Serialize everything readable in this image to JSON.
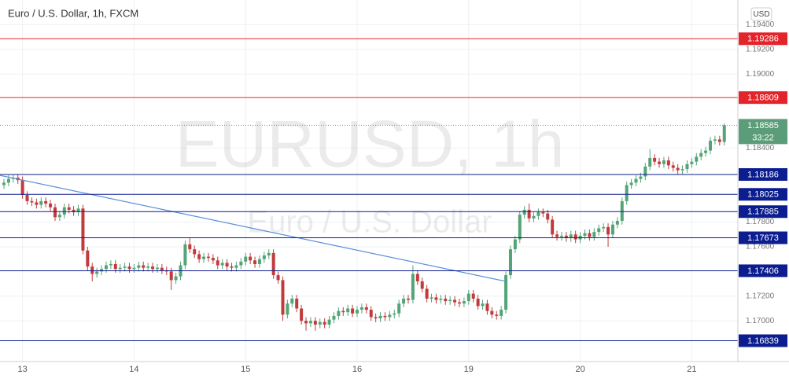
{
  "chart_data": {
    "type": "candlestick",
    "title": "Euro / U.S. Dollar, 1h, FXCM",
    "watermark": "EURUSD, 1h",
    "watermark_subtitle": "Euro / U.S. Dollar",
    "currency": "USD",
    "up_color": "#53a477",
    "down_color": "#c23b3b",
    "grid": true,
    "ylim": [
      1.1667,
      1.196
    ],
    "yticks": [
      {
        "value": 1.194,
        "label": "1.19400"
      },
      {
        "value": 1.192,
        "label": "1.19200"
      },
      {
        "value": 1.19,
        "label": "1.19000"
      },
      {
        "value": 1.184,
        "label": "1.18400"
      },
      {
        "value": 1.178,
        "label": "1.17800"
      },
      {
        "value": 1.176,
        "label": "1.17600"
      },
      {
        "value": 1.172,
        "label": "1.17200"
      },
      {
        "value": 1.17,
        "label": "1.17000"
      }
    ],
    "categories": [
      null,
      null,
      null,
      null,
      "13",
      null,
      null,
      null,
      null,
      null,
      null,
      null,
      null,
      null,
      null,
      null,
      null,
      null,
      null,
      null,
      null,
      null,
      null,
      null,
      null,
      null,
      null,
      null,
      "14",
      null,
      null,
      null,
      null,
      null,
      null,
      null,
      null,
      null,
      null,
      null,
      null,
      null,
      null,
      null,
      null,
      null,
      null,
      null,
      null,
      null,
      null,
      null,
      "15",
      null,
      null,
      null,
      null,
      null,
      null,
      null,
      null,
      null,
      null,
      null,
      null,
      null,
      null,
      null,
      null,
      null,
      null,
      null,
      null,
      null,
      null,
      null,
      "16",
      null,
      null,
      null,
      null,
      null,
      null,
      null,
      null,
      null,
      null,
      null,
      null,
      null,
      null,
      null,
      null,
      null,
      null,
      null,
      null,
      null,
      null,
      null,
      "19",
      null,
      null,
      null,
      null,
      null,
      null,
      null,
      null,
      null,
      null,
      null,
      null,
      null,
      null,
      null,
      null,
      null,
      null,
      null,
      null,
      null,
      null,
      null,
      "20",
      null,
      null,
      null,
      null,
      null,
      null,
      null,
      null,
      null,
      null,
      null,
      null,
      null,
      null,
      null,
      null,
      null,
      null,
      null,
      null,
      null,
      null,
      null,
      "21",
      null,
      null,
      null,
      null,
      null,
      null,
      null
    ],
    "open": [
      1.181,
      1.1812,
      1.1815,
      1.1816,
      1.1814,
      1.1802,
      1.1797,
      1.1796,
      1.1794,
      1.1797,
      1.1795,
      1.1792,
      1.1784,
      1.1786,
      1.1792,
      1.179,
      1.1788,
      1.1791,
      1.1757,
      1.1744,
      1.1738,
      1.174,
      1.1742,
      1.1745,
      1.1746,
      1.1742,
      1.1743,
      1.1744,
      1.1742,
      1.1743,
      1.1745,
      1.1743,
      1.1744,
      1.1742,
      1.1743,
      1.1741,
      1.174,
      1.1733,
      1.1736,
      1.1745,
      1.1762,
      1.1758,
      1.1754,
      1.175,
      1.1752,
      1.1751,
      1.1749,
      1.1745,
      1.1747,
      1.1744,
      1.1743,
      1.1745,
      1.1748,
      1.1752,
      1.1749,
      1.1746,
      1.175,
      1.1753,
      1.1755,
      1.1737,
      1.1733,
      1.1705,
      1.1714,
      1.1718,
      1.171,
      1.17,
      1.1698,
      1.17,
      1.1697,
      1.1699,
      1.1697,
      1.1701,
      1.1704,
      1.1708,
      1.1707,
      1.171,
      1.1706,
      1.1709,
      1.1711,
      1.1709,
      1.1703,
      1.1702,
      1.1704,
      1.1703,
      1.1705,
      1.1706,
      1.1714,
      1.1718,
      1.1717,
      1.1738,
      1.1732,
      1.1726,
      1.1718,
      1.1719,
      1.1717,
      1.1718,
      1.1716,
      1.1717,
      1.1715,
      1.1714,
      1.1716,
      1.1722,
      1.1718,
      1.1712,
      1.1714,
      1.1708,
      1.1705,
      1.1704,
      1.1709,
      1.1737,
      1.1758,
      1.1766,
      1.1786,
      1.179,
      1.1783,
      1.1785,
      1.1788,
      1.1787,
      1.1782,
      1.177,
      1.1768,
      1.1769,
      1.1767,
      1.177,
      1.1766,
      1.1769,
      1.1771,
      1.1768,
      1.1772,
      1.1775,
      1.1776,
      1.177,
      1.1778,
      1.1781,
      1.1797,
      1.181,
      1.1812,
      1.1815,
      1.1817,
      1.1825,
      1.1832,
      1.1829,
      1.1827,
      1.183,
      1.1826,
      1.1824,
      1.1822,
      1.1823,
      1.1827,
      1.1829,
      1.1833,
      1.1836,
      1.1838,
      1.1846,
      1.1847,
      1.1845
    ],
    "high": [
      1.1815,
      1.1818,
      1.1819,
      1.1819,
      1.1817,
      1.1805,
      1.18,
      1.1799,
      1.18,
      1.18,
      1.1798,
      1.1795,
      1.1789,
      1.1795,
      1.1795,
      1.1793,
      1.1794,
      1.1794,
      1.176,
      1.1747,
      1.1743,
      1.1745,
      1.1748,
      1.1749,
      1.1749,
      1.1746,
      1.1747,
      1.1747,
      1.1746,
      1.1748,
      1.1748,
      1.1747,
      1.1747,
      1.1746,
      1.1746,
      1.1744,
      1.1743,
      1.1739,
      1.1748,
      1.1765,
      1.1767,
      1.1761,
      1.1757,
      1.1755,
      1.1755,
      1.1754,
      1.1752,
      1.175,
      1.175,
      1.1747,
      1.1748,
      1.1751,
      1.1755,
      1.1755,
      1.1752,
      1.1753,
      1.1756,
      1.1758,
      1.1758,
      1.174,
      1.1736,
      1.1717,
      1.1721,
      1.1721,
      1.1713,
      1.1703,
      1.1703,
      1.1703,
      1.1702,
      1.1702,
      1.1704,
      1.1707,
      1.1711,
      1.1711,
      1.1713,
      1.1713,
      1.1712,
      1.1714,
      1.1714,
      1.1712,
      1.1706,
      1.1707,
      1.1707,
      1.1708,
      1.1709,
      1.1717,
      1.1721,
      1.1721,
      1.1745,
      1.1741,
      1.1735,
      1.1729,
      1.1722,
      1.1722,
      1.1721,
      1.1721,
      1.172,
      1.172,
      1.1718,
      1.1719,
      1.1725,
      1.1725,
      1.1721,
      1.1717,
      1.1717,
      1.1711,
      1.1708,
      1.1712,
      1.174,
      1.1761,
      1.1769,
      1.1789,
      1.1793,
      1.1795,
      1.1788,
      1.1791,
      1.1791,
      1.179,
      1.1785,
      1.1773,
      1.1772,
      1.1772,
      1.1773,
      1.1773,
      1.1772,
      1.1774,
      1.1774,
      1.1775,
      1.1778,
      1.1779,
      1.1779,
      1.1781,
      1.1784,
      1.18,
      1.1813,
      1.1815,
      1.1818,
      1.182,
      1.1828,
      1.1839,
      1.1835,
      1.1832,
      1.1833,
      1.1833,
      1.1829,
      1.1827,
      1.1826,
      1.183,
      1.1832,
      1.1836,
      1.1839,
      1.1841,
      1.1849,
      1.185,
      1.185,
      1.186
    ],
    "low": [
      1.1807,
      1.1809,
      1.1812,
      1.1811,
      1.1799,
      1.1794,
      1.1793,
      1.1791,
      1.1791,
      1.1792,
      1.1789,
      1.1781,
      1.1781,
      1.1783,
      1.1787,
      1.1785,
      1.1785,
      1.1754,
      1.1741,
      1.1732,
      1.1735,
      1.1737,
      1.1739,
      1.1742,
      1.1739,
      1.1739,
      1.174,
      1.1739,
      1.1739,
      1.174,
      1.174,
      1.174,
      1.1739,
      1.1739,
      1.1738,
      1.1737,
      1.1725,
      1.173,
      1.1733,
      1.1742,
      1.1755,
      1.1751,
      1.1747,
      1.1747,
      1.1748,
      1.1746,
      1.1742,
      1.1742,
      1.1741,
      1.174,
      1.174,
      1.1742,
      1.1745,
      1.1746,
      1.1743,
      1.1743,
      1.1747,
      1.175,
      1.1734,
      1.173,
      1.17,
      1.1702,
      1.1711,
      1.1707,
      1.1697,
      1.1692,
      1.1695,
      1.1692,
      1.1694,
      1.1694,
      1.1694,
      1.1698,
      1.1701,
      1.1704,
      1.1704,
      1.1703,
      1.1703,
      1.1706,
      1.1706,
      1.17,
      1.1699,
      1.1699,
      1.17,
      1.17,
      1.1702,
      1.1703,
      1.1711,
      1.1714,
      1.1714,
      1.1729,
      1.1723,
      1.1715,
      1.1715,
      1.1714,
      1.1714,
      1.1713,
      1.1713,
      1.1712,
      1.1711,
      1.1711,
      1.1713,
      1.1715,
      1.1709,
      1.1709,
      1.1705,
      1.1702,
      1.1701,
      1.1701,
      1.1706,
      1.1734,
      1.1755,
      1.1763,
      1.1783,
      1.178,
      1.178,
      1.1782,
      1.1784,
      1.1779,
      1.1767,
      1.1765,
      1.1765,
      1.1764,
      1.1764,
      1.1763,
      1.1763,
      1.1766,
      1.1765,
      1.1765,
      1.1769,
      1.1772,
      1.176,
      1.1767,
      1.1775,
      1.1778,
      1.1794,
      1.1807,
      1.1809,
      1.1812,
      1.1814,
      1.1822,
      1.1826,
      1.1824,
      1.1824,
      1.1823,
      1.1821,
      1.1819,
      1.1819,
      1.182,
      1.1824,
      1.1826,
      1.183,
      1.1833,
      1.1835,
      1.1843,
      1.1842,
      1.1842
    ],
    "close": [
      1.1812,
      1.1815,
      1.1816,
      1.1814,
      1.1802,
      1.1797,
      1.1796,
      1.1794,
      1.1797,
      1.1795,
      1.1792,
      1.1784,
      1.1786,
      1.1792,
      1.179,
      1.1788,
      1.1791,
      1.1757,
      1.1744,
      1.1738,
      1.174,
      1.1742,
      1.1745,
      1.1746,
      1.1742,
      1.1743,
      1.1744,
      1.1742,
      1.1743,
      1.1745,
      1.1743,
      1.1744,
      1.1742,
      1.1743,
      1.1741,
      1.174,
      1.1733,
      1.1736,
      1.1745,
      1.1762,
      1.1758,
      1.1754,
      1.175,
      1.1752,
      1.1751,
      1.1749,
      1.1745,
      1.1747,
      1.1744,
      1.1743,
      1.1745,
      1.1748,
      1.1752,
      1.1749,
      1.1746,
      1.175,
      1.1753,
      1.1755,
      1.1737,
      1.1733,
      1.1705,
      1.1714,
      1.1718,
      1.171,
      1.17,
      1.1698,
      1.17,
      1.1697,
      1.1699,
      1.1697,
      1.1701,
      1.1704,
      1.1708,
      1.1707,
      1.171,
      1.1706,
      1.1709,
      1.1711,
      1.1709,
      1.1703,
      1.1702,
      1.1704,
      1.1703,
      1.1705,
      1.1706,
      1.1714,
      1.1718,
      1.1717,
      1.1738,
      1.1732,
      1.1726,
      1.1718,
      1.1719,
      1.1717,
      1.1718,
      1.1716,
      1.1717,
      1.1715,
      1.1714,
      1.1716,
      1.1722,
      1.1718,
      1.1712,
      1.1714,
      1.1708,
      1.1705,
      1.1704,
      1.1709,
      1.1737,
      1.1758,
      1.1766,
      1.1786,
      1.179,
      1.1783,
      1.1785,
      1.1788,
      1.1787,
      1.1782,
      1.177,
      1.1768,
      1.1769,
      1.1767,
      1.177,
      1.1766,
      1.1769,
      1.1771,
      1.1768,
      1.1772,
      1.1775,
      1.1776,
      1.177,
      1.1778,
      1.1781,
      1.1797,
      1.181,
      1.1812,
      1.1815,
      1.1817,
      1.1825,
      1.1832,
      1.1829,
      1.1827,
      1.183,
      1.1826,
      1.1824,
      1.1822,
      1.1823,
      1.1827,
      1.1829,
      1.1833,
      1.1836,
      1.1838,
      1.1846,
      1.1847,
      1.1845,
      1.18585
    ],
    "levels": [
      {
        "value": 1.19286,
        "color": "#e3242b"
      },
      {
        "value": 1.18809,
        "color": "#e3242b"
      },
      {
        "value": 1.18186,
        "color": "#0c1d8f"
      },
      {
        "value": 1.18025,
        "color": "#0c1d8f"
      },
      {
        "value": 1.17885,
        "color": "#0c1d8f"
      },
      {
        "value": 1.17673,
        "color": "#0c1d8f"
      },
      {
        "value": 1.17406,
        "color": "#0c1d8f"
      },
      {
        "value": 1.16839,
        "color": "#0c1d8f"
      }
    ],
    "trendline": {
      "x": [
        -1,
        108
      ],
      "y": [
        1.1818,
        1.1732
      ],
      "color": "#5b8fd9"
    },
    "last_price": 1.18585,
    "last_price_color": "#5b9d78",
    "countdown": "33:22"
  }
}
